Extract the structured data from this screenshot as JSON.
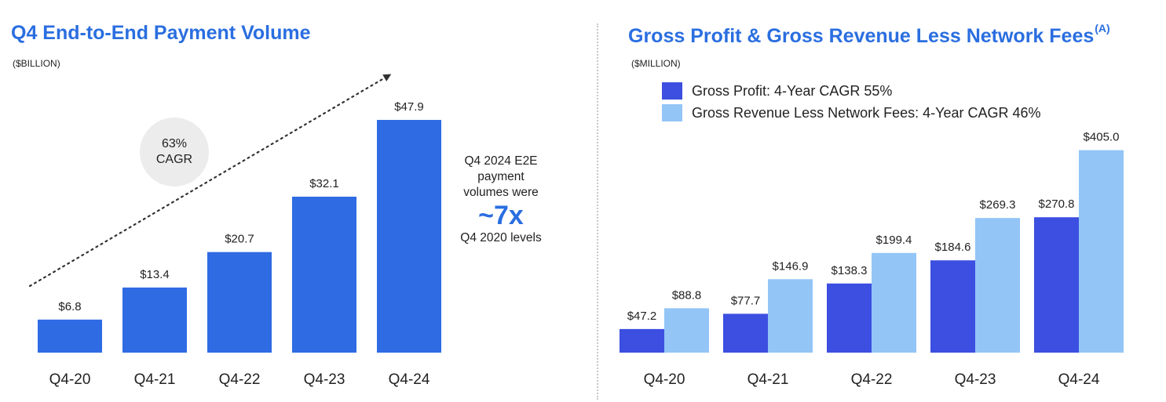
{
  "chart_data": [
    {
      "type": "bar",
      "title": "Q4 End-to-End Payment Volume",
      "unit_label": "($BILLION)",
      "categories": [
        "Q4-20",
        "Q4-21",
        "Q4-22",
        "Q4-23",
        "Q4-24"
      ],
      "values": [
        6.8,
        13.4,
        20.7,
        32.1,
        47.9
      ],
      "value_labels": [
        "$6.8",
        "$13.4",
        "$20.7",
        "$32.1",
        "$47.9"
      ],
      "ylim": [
        0,
        50
      ],
      "color": "#2f6be3",
      "annotation": {
        "line1": "63%",
        "line2": "CAGR"
      },
      "grid": false
    },
    {
      "type": "bar",
      "title": "Gross Profit & Gross Revenue Less Network Fees",
      "title_superscript": "(A)",
      "unit_label": "($MILLION)",
      "categories": [
        "Q4-20",
        "Q4-21",
        "Q4-22",
        "Q4-23",
        "Q4-24"
      ],
      "series": [
        {
          "name": "Gross Profit: 4-Year CAGR 55%",
          "values": [
            47.2,
            77.7,
            138.3,
            184.6,
            270.8
          ],
          "value_labels": [
            "$47.2",
            "$77.7",
            "$138.3",
            "$184.6",
            "$270.8"
          ],
          "color": "#3c4fe0"
        },
        {
          "name": "Gross Revenue Less Network Fees: 4-Year CAGR 46%",
          "values": [
            88.8,
            146.9,
            199.4,
            269.3,
            405.0
          ],
          "value_labels": [
            "$88.8",
            "$146.9",
            "$199.4",
            "$269.3",
            "$405.0"
          ],
          "color": "#93c5f7"
        }
      ],
      "ylim": [
        0,
        420
      ],
      "legend_position": "top-left",
      "grid": false
    }
  ],
  "callout": {
    "line1": "Q4 2024 E2E",
    "line2": "payment",
    "line3": "volumes were",
    "big": "~7x",
    "line4": "Q4 2020 levels"
  }
}
